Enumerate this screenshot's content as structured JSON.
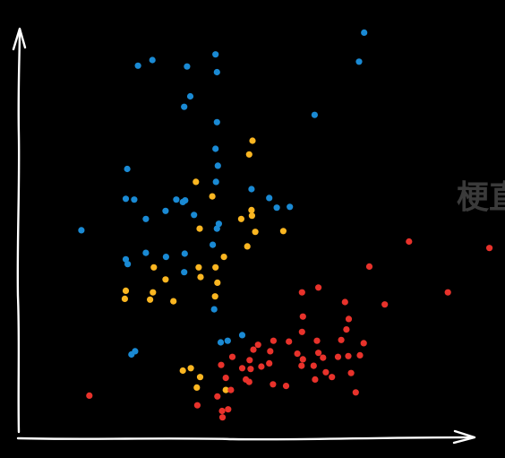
{
  "chart_data": {
    "type": "scatter",
    "title": "",
    "xlabel": "",
    "ylabel": "",
    "xlim": [
      0,
      100
    ],
    "ylim": [
      0,
      100
    ],
    "grid": false,
    "legend": "none",
    "side_text": "梗直",
    "axis_color": "#ffffff",
    "side_text_color": "#3a3a3a",
    "series": [
      {
        "color": "#1a8ad4",
        "points": [
          [
            28.4,
            94.0
          ],
          [
            25.3,
            92.6
          ],
          [
            35.8,
            92.4
          ],
          [
            41.9,
            95.4
          ],
          [
            42.2,
            91.0
          ],
          [
            36.5,
            85.0
          ],
          [
            35.2,
            82.4
          ],
          [
            72.6,
            93.6
          ],
          [
            73.7,
            100.8
          ],
          [
            63.1,
            80.4
          ],
          [
            42.2,
            78.6
          ],
          [
            41.9,
            72.0
          ],
          [
            42.4,
            67.8
          ],
          [
            23.0,
            67.0
          ],
          [
            24.5,
            59.4
          ],
          [
            22.7,
            59.6
          ],
          [
            33.5,
            59.4
          ],
          [
            34.9,
            58.8
          ],
          [
            35.4,
            59.2
          ],
          [
            31.2,
            56.6
          ],
          [
            42.0,
            63.8
          ],
          [
            49.6,
            62.0
          ],
          [
            53.4,
            59.8
          ],
          [
            55.0,
            57.4
          ],
          [
            57.8,
            57.6
          ],
          [
            27.0,
            54.6
          ],
          [
            13.2,
            51.8
          ],
          [
            37.3,
            55.6
          ],
          [
            42.2,
            52.2
          ],
          [
            41.3,
            48.2
          ],
          [
            42.6,
            53.4
          ],
          [
            22.7,
            44.6
          ],
          [
            23.1,
            43.4
          ],
          [
            27.0,
            46.2
          ],
          [
            31.3,
            45.2
          ],
          [
            35.3,
            46.0
          ],
          [
            35.2,
            41.4
          ],
          [
            41.6,
            32.2
          ],
          [
            43.0,
            24.0
          ],
          [
            44.5,
            24.4
          ],
          [
            47.6,
            25.8
          ],
          [
            24.7,
            21.8
          ],
          [
            23.9,
            21.0
          ]
        ]
      },
      {
        "color": "#fbb621",
        "points": [
          [
            49.8,
            74.0
          ],
          [
            49.1,
            70.6
          ],
          [
            37.7,
            63.8
          ],
          [
            41.2,
            60.2
          ],
          [
            47.4,
            54.6
          ],
          [
            49.7,
            55.4
          ],
          [
            50.4,
            51.4
          ],
          [
            56.4,
            51.6
          ],
          [
            38.5,
            52.2
          ],
          [
            28.7,
            42.6
          ],
          [
            31.2,
            39.6
          ],
          [
            28.5,
            36.4
          ],
          [
            22.7,
            36.8
          ],
          [
            22.5,
            34.8
          ],
          [
            27.9,
            34.6
          ],
          [
            32.9,
            34.2
          ],
          [
            38.3,
            42.6
          ],
          [
            41.9,
            42.6
          ],
          [
            42.3,
            38.8
          ],
          [
            43.7,
            45.2
          ],
          [
            38.7,
            40.2
          ],
          [
            48.7,
            47.8
          ],
          [
            41.8,
            35.4
          ],
          [
            49.6,
            56.8
          ],
          [
            36.6,
            17.6
          ],
          [
            34.9,
            17.0
          ],
          [
            38.6,
            15.4
          ],
          [
            37.9,
            12.8
          ],
          [
            44.1,
            12.2
          ]
        ]
      },
      {
        "color": "#e8322b",
        "points": [
          [
            14.9,
            10.8
          ],
          [
            83.3,
            49.0
          ],
          [
            74.8,
            42.8
          ],
          [
            100.5,
            47.4
          ],
          [
            91.6,
            36.4
          ],
          [
            78.1,
            33.4
          ],
          [
            60.4,
            36.4
          ],
          [
            63.9,
            37.6
          ],
          [
            60.6,
            30.4
          ],
          [
            69.6,
            34.0
          ],
          [
            70.4,
            29.8
          ],
          [
            69.9,
            27.2
          ],
          [
            68.8,
            24.6
          ],
          [
            68.1,
            20.4
          ],
          [
            60.4,
            26.6
          ],
          [
            63.6,
            24.4
          ],
          [
            63.9,
            21.4
          ],
          [
            60.6,
            19.8
          ],
          [
            54.3,
            24.4
          ],
          [
            57.6,
            24.2
          ],
          [
            51.0,
            23.4
          ],
          [
            50.0,
            22.2
          ],
          [
            53.6,
            21.8
          ],
          [
            49.2,
            19.6
          ],
          [
            49.4,
            17.4
          ],
          [
            45.5,
            20.4
          ],
          [
            47.6,
            17.6
          ],
          [
            49.1,
            14.2
          ],
          [
            44.1,
            15.2
          ],
          [
            45.2,
            12.2
          ],
          [
            42.3,
            10.6
          ],
          [
            43.1,
            18.4
          ],
          [
            51.7,
            18.0
          ],
          [
            53.4,
            18.8
          ],
          [
            48.4,
            14.8
          ],
          [
            59.4,
            21.2
          ],
          [
            62.9,
            18.2
          ],
          [
            65.5,
            16.6
          ],
          [
            72.8,
            20.8
          ],
          [
            73.6,
            23.8
          ],
          [
            60.3,
            18.2
          ],
          [
            66.8,
            15.4
          ],
          [
            64.9,
            20.2
          ],
          [
            70.3,
            20.6
          ],
          [
            54.2,
            13.6
          ],
          [
            57.0,
            13.2
          ],
          [
            63.2,
            14.8
          ],
          [
            70.9,
            16.4
          ],
          [
            71.9,
            11.6
          ],
          [
            38.0,
            8.4
          ],
          [
            43.3,
            7.0
          ],
          [
            44.6,
            7.4
          ],
          [
            43.4,
            5.4
          ]
        ]
      }
    ]
  }
}
